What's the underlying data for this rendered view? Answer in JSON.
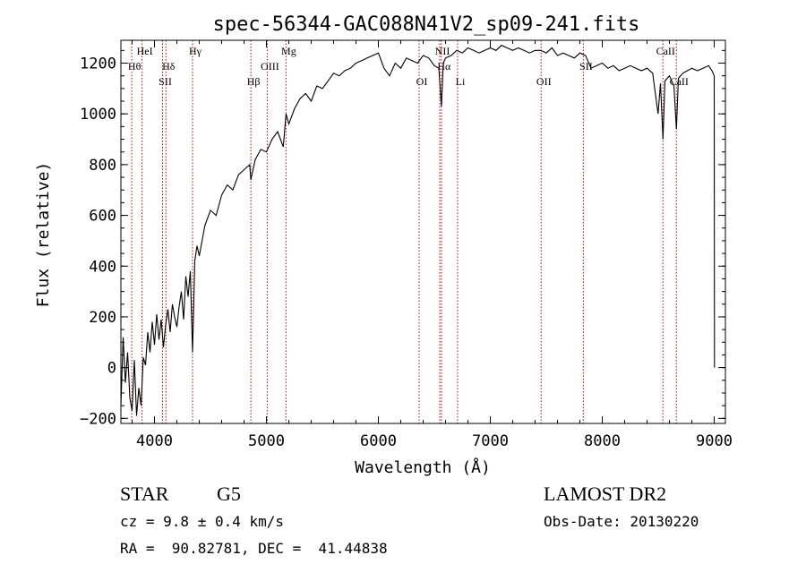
{
  "chart_data": {
    "type": "line",
    "title": "spec-56344-GAC088N41V2_sp09-241.fits",
    "xlabel": "Wavelength (Å)",
    "ylabel": "Flux (relative)",
    "xlim": [
      3700,
      9100
    ],
    "ylim": [
      -220,
      1290
    ],
    "xticks": [
      4000,
      5000,
      6000,
      7000,
      8000,
      9000
    ],
    "yticks": [
      -200,
      0,
      200,
      400,
      600,
      800,
      1000,
      1200
    ],
    "grid": false,
    "series": [
      {
        "x": [
          3700,
          3720,
          3740,
          3760,
          3780,
          3800,
          3820,
          3840,
          3860,
          3880,
          3900,
          3920,
          3940,
          3960,
          3980,
          4000,
          4020,
          4040,
          4060,
          4080,
          4100,
          4120,
          4140,
          4160,
          4180,
          4200,
          4220,
          4240,
          4260,
          4280,
          4300,
          4320,
          4340,
          4360,
          4380,
          4400,
          4450,
          4500,
          4550,
          4600,
          4650,
          4700,
          4750,
          4800,
          4850,
          4861,
          4900,
          4950,
          5000,
          5050,
          5100,
          5150,
          5175,
          5200,
          5250,
          5300,
          5350,
          5400,
          5450,
          5500,
          5550,
          5600,
          5650,
          5700,
          5750,
          5800,
          5850,
          5900,
          5950,
          6000,
          6050,
          6100,
          6150,
          6200,
          6250,
          6300,
          6350,
          6400,
          6450,
          6500,
          6540,
          6563,
          6580,
          6600,
          6650,
          6700,
          6750,
          6800,
          6850,
          6900,
          6950,
          7000,
          7050,
          7100,
          7150,
          7200,
          7250,
          7300,
          7350,
          7400,
          7450,
          7500,
          7550,
          7600,
          7650,
          7700,
          7750,
          7800,
          7850,
          7900,
          7950,
          8000,
          8050,
          8100,
          8150,
          8200,
          8250,
          8300,
          8350,
          8400,
          8450,
          8498,
          8520,
          8542,
          8560,
          8600,
          8640,
          8662,
          8680,
          8720,
          8760,
          8800,
          8850,
          8900,
          8950,
          8980,
          9000,
          9002
        ],
        "y": [
          -150,
          120,
          -60,
          60,
          -120,
          -170,
          30,
          -190,
          -80,
          -150,
          40,
          10,
          140,
          60,
          180,
          90,
          210,
          110,
          190,
          80,
          170,
          230,
          140,
          250,
          200,
          160,
          240,
          300,
          190,
          360,
          280,
          380,
          60,
          420,
          480,
          440,
          560,
          620,
          600,
          680,
          720,
          700,
          760,
          780,
          800,
          740,
          820,
          860,
          850,
          900,
          930,
          870,
          1000,
          960,
          1020,
          1060,
          1080,
          1050,
          1110,
          1100,
          1130,
          1160,
          1150,
          1170,
          1180,
          1200,
          1210,
          1220,
          1230,
          1240,
          1180,
          1150,
          1200,
          1180,
          1220,
          1210,
          1200,
          1230,
          1220,
          1190,
          1180,
          1030,
          1200,
          1220,
          1230,
          1250,
          1240,
          1260,
          1250,
          1240,
          1250,
          1260,
          1250,
          1270,
          1260,
          1250,
          1260,
          1250,
          1240,
          1250,
          1250,
          1240,
          1260,
          1230,
          1240,
          1230,
          1220,
          1240,
          1230,
          1180,
          1190,
          1200,
          1180,
          1190,
          1170,
          1180,
          1190,
          1180,
          1170,
          1180,
          1160,
          1000,
          1120,
          900,
          1130,
          1150,
          1110,
          940,
          1140,
          1160,
          1170,
          1180,
          1170,
          1180,
          1190,
          1170,
          1150,
          0
        ]
      }
    ],
    "lines": [
      {
        "label": "Hθ",
        "x": 3797,
        "row": "high2"
      },
      {
        "label": "HeI",
        "x": 3889,
        "row": "high1"
      },
      {
        "label": "Hδ",
        "x": 4102,
        "row": "high2"
      },
      {
        "label": "SII",
        "x": 4072,
        "row": "low"
      },
      {
        "label": "Hγ",
        "x": 4340,
        "row": "high1"
      },
      {
        "label": "Hβ",
        "x": 4861,
        "row": "low"
      },
      {
        "label": "OIII",
        "x": 5007,
        "row": "high2"
      },
      {
        "label": "Mg",
        "x": 5175,
        "row": "high1"
      },
      {
        "label": "OI",
        "x": 6364,
        "row": "low"
      },
      {
        "label": "NII",
        "x": 6548,
        "row": "high1"
      },
      {
        "label": "Hα",
        "x": 6563,
        "row": "high2"
      },
      {
        "label": "Li",
        "x": 6708,
        "row": "low"
      },
      {
        "label": "OII",
        "x": 7454,
        "row": "low"
      },
      {
        "label": "SII",
        "x": 7831,
        "row": "high2"
      },
      {
        "label": "CaII",
        "x": 8542,
        "row": "high1"
      },
      {
        "label": "CaII",
        "x": 8662,
        "row": "low"
      }
    ],
    "colors": {
      "spectrum": "#000000",
      "marker": "#cc0000"
    }
  },
  "info": {
    "object_class": "STAR",
    "subclass": "G5",
    "redshift": "cz = 9.8 ± 0.4 km/s",
    "coordinates": "RA =  90.82781, DEC =  41.44838",
    "survey": "LAMOST DR2",
    "obs_date": "Obs-Date: 20130220"
  }
}
